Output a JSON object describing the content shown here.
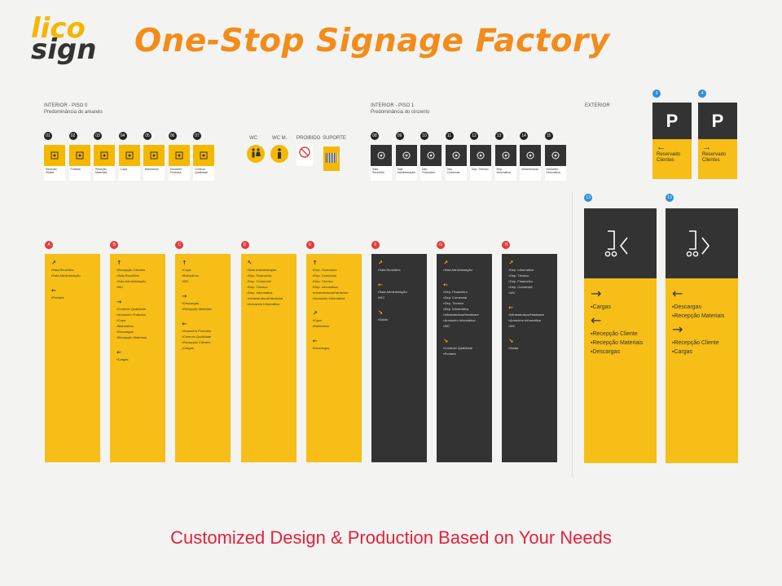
{
  "brand": {
    "logo_line1": "lico",
    "logo_line2": "sign",
    "headline": "One-Stop Signage Factory"
  },
  "footer": {
    "tagline": "Customized Design & Production Based on Your Needs"
  },
  "sections": {
    "interior0": {
      "title": "INTERIOR - PISO 0",
      "subtitle": "Predominância do amarelo"
    },
    "interior1": {
      "title": "INTERIOR - PISO 1",
      "subtitle": "Predominância do cinzento"
    },
    "exterior": {
      "title": "EXTERIOR"
    }
  },
  "colors": {
    "yellow": "#f6be16",
    "dark": "#333333",
    "orange": "#f28c1a",
    "red": "#e4213a"
  },
  "tiles0": [
    {
      "n": "01",
      "cap": "Receção Visitas",
      "icon": "people-icon"
    },
    {
      "n": "02",
      "cap": "Portaria",
      "icon": "star-icon"
    },
    {
      "n": "03",
      "cap": "Receção Materiais",
      "icon": "box-icon"
    },
    {
      "n": "04",
      "cap": "Copa",
      "icon": "cup-icon"
    },
    {
      "n": "05",
      "cap": "Balneários",
      "icon": "shower-icon"
    },
    {
      "n": "06",
      "cap": "Armazém Produtos",
      "icon": "hexagon-icon"
    },
    {
      "n": "07",
      "cap": "Controlo Qualidade",
      "icon": "check-icon"
    }
  ],
  "tiles1": [
    {
      "n": "08",
      "cap": "Sala Reuniões",
      "icon": "network-icon"
    },
    {
      "n": "09",
      "cap": "Sala Administração",
      "icon": "group-icon"
    },
    {
      "n": "10",
      "cap": "Dep. Financeiro",
      "icon": "calculator-icon"
    },
    {
      "n": "11",
      "cap": "Dep. Comercial",
      "icon": "hand-icon"
    },
    {
      "n": "12",
      "cap": "Dep. Técnico",
      "icon": "compass-icon"
    },
    {
      "n": "13",
      "cap": "Dep. Informática",
      "icon": "computer-icon"
    },
    {
      "n": "14",
      "cap": "Infraestrutura",
      "icon": "plug-icon"
    },
    {
      "n": "15",
      "cap": "Armazém Informática",
      "icon": "archive-icon"
    }
  ],
  "extras": {
    "wc": "WC",
    "wcm": "WC M.",
    "proibido": "PROIBIDO",
    "suporte": "SUPORTE"
  },
  "panels": [
    {
      "id": "A",
      "dark": false,
      "groups": [
        {
          "arrow": "↗",
          "items": [
            "Sala Reuniões",
            "Sala Administração"
          ]
        },
        {
          "arrow": "←",
          "items": [
            "Portaria"
          ]
        }
      ]
    },
    {
      "id": "B",
      "dark": false,
      "groups": [
        {
          "arrow": "↑",
          "items": [
            "Recepção Clientes",
            "Sala Reuniões",
            "Sala Administração",
            "WC"
          ]
        },
        {
          "arrow": "→",
          "items": [
            "Controlo Qualidade",
            "Armazém Produtos",
            "Copa",
            "Balneários",
            "Descargas",
            "Recepção Materiais"
          ]
        },
        {
          "arrow": "←",
          "items": [
            "Cargas"
          ]
        }
      ]
    },
    {
      "id": "C",
      "dark": false,
      "groups": [
        {
          "arrow": "↑",
          "items": [
            "Copa",
            "Balneários",
            "WC"
          ]
        },
        {
          "arrow": "→",
          "items": [
            "Descargas",
            "Recepção Materiais"
          ]
        },
        {
          "arrow": "←",
          "items": [
            "Armazém Produtos",
            "Controlo Qualidade",
            "Recepção Clientes",
            "Cargas"
          ]
        }
      ]
    },
    {
      "id": "D",
      "dark": false,
      "groups": [
        {
          "arrow": "↖",
          "items": [
            "Sala Administração",
            "Dep. Financeiro",
            "Dep. Comercial",
            "Dep. Técnico",
            "Dep. Informática",
            "Infraestrutura/Hardware",
            "Armazém Informática"
          ]
        }
      ]
    },
    {
      "id": "E",
      "dark": false,
      "groups": [
        {
          "arrow": "↑",
          "items": [
            "Dep. Financeiro",
            "Dep. Comercial",
            "Dep. Técnico",
            "Dep. Informática",
            "Infraestrutura/Hardware",
            "Armazém Informática"
          ]
        },
        {
          "arrow": "↗",
          "items": [
            "Copa",
            "Balneários"
          ]
        },
        {
          "arrow": "←",
          "items": [
            "Descargas"
          ]
        }
      ]
    },
    {
      "id": "F",
      "dark": true,
      "groups": [
        {
          "arrow": "↗",
          "items": [
            "Sala Reuniões"
          ]
        },
        {
          "arrow": "←",
          "items": [
            "Sala Administração",
            "WC"
          ]
        },
        {
          "arrow": "↘",
          "items": [
            "Saída"
          ]
        }
      ]
    },
    {
      "id": "G",
      "dark": true,
      "groups": [
        {
          "arrow": "↗",
          "items": [
            "Sala Administração"
          ]
        },
        {
          "arrow": "←",
          "items": [
            "Dep. Financeiro",
            "Dep. Comercial",
            "Dep. Técnico",
            "Dep. Informática",
            "Infraestrutura/Hardware",
            "Armazém Informática",
            "WC"
          ]
        },
        {
          "arrow": "↘",
          "items": [
            "Controlo Qualidade",
            "Portaria"
          ]
        }
      ]
    },
    {
      "id": "H",
      "dark": true,
      "groups": [
        {
          "arrow": "↗",
          "items": [
            "Dep. Informática",
            "Dep. Técnico",
            "Dep. Financeiro",
            "Dep. Comercial",
            "WC"
          ]
        },
        {
          "arrow": "←",
          "items": [
            "Infraestrutura/Hardware",
            "Armazém Informática",
            "WC"
          ]
        },
        {
          "arrow": "↘",
          "items": [
            "Saída"
          ]
        }
      ]
    }
  ],
  "exterior_small": [
    {
      "n": "3",
      "symbol": "P",
      "arrow": "←",
      "line1": "Reservado",
      "line2": "Clientes"
    },
    {
      "n": "4",
      "symbol": "P",
      "arrow": "→",
      "line1": "Reservado",
      "line2": "Clientes"
    }
  ],
  "exterior_big": [
    {
      "n": "13",
      "symbol": "J<",
      "groups": [
        {
          "arrow": "→",
          "items": [
            "Cargas"
          ]
        },
        {
          "arrow": "←",
          "items": [
            "Recepção Cliente",
            "Recepção Materiais",
            "Descargas"
          ]
        }
      ]
    },
    {
      "n": "13",
      "symbol": "J>",
      "groups": [
        {
          "arrow": "←",
          "items": [
            "Descargas",
            "Recepção Materiais"
          ]
        },
        {
          "arrow": "→",
          "items": [
            "Recepção Cliente",
            "Cargas"
          ]
        }
      ]
    }
  ]
}
